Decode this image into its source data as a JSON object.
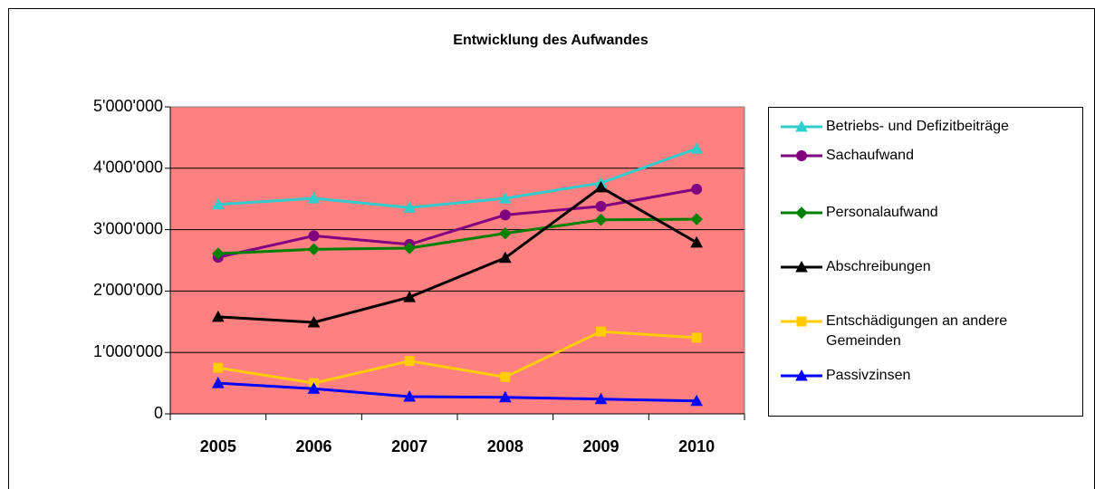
{
  "chart_data": {
    "type": "line",
    "title": "Entwicklung des Aufwandes",
    "categories": [
      "2005",
      "2006",
      "2007",
      "2008",
      "2009",
      "2010"
    ],
    "series": [
      {
        "name": "Betriebs- und Defizitbeiträge",
        "color": "#33cccc",
        "marker": "triangle",
        "values": [
          3410000,
          3510000,
          3360000,
          3510000,
          3760000,
          4320000
        ]
      },
      {
        "name": "Sachaufwand",
        "color": "#800080",
        "marker": "circle",
        "values": [
          2550000,
          2900000,
          2760000,
          3240000,
          3380000,
          3660000
        ]
      },
      {
        "name": "Personalaufwand",
        "color": "#008000",
        "marker": "diamond",
        "values": [
          2610000,
          2680000,
          2700000,
          2940000,
          3160000,
          3170000
        ]
      },
      {
        "name": "Abschreibungen",
        "color": "#000000",
        "marker": "triangle",
        "values": [
          1580000,
          1490000,
          1900000,
          2540000,
          3690000,
          2790000
        ]
      },
      {
        "name": "Entschädigungen an andere Gemeinden",
        "color": "#ffcc00",
        "marker": "square",
        "values": [
          750000,
          500000,
          860000,
          600000,
          1340000,
          1240000
        ]
      },
      {
        "name": "Passivzinsen",
        "color": "#0000ff",
        "marker": "triangle",
        "values": [
          500000,
          410000,
          280000,
          270000,
          240000,
          210000
        ]
      }
    ],
    "ylim": [
      0,
      5000000
    ],
    "yticks": [
      0,
      {
        "value": 1000000,
        "label": "1'000'000"
      },
      {
        "value": 2000000,
        "label": "2'000'000"
      },
      {
        "value": 3000000,
        "label": "3'000'000"
      },
      {
        "value": 4000000,
        "label": "4'000'000"
      },
      {
        "value": 5000000,
        "label": "5'000'000"
      }
    ],
    "grid": true,
    "plot_background": "#ff8080",
    "legend": "right"
  }
}
